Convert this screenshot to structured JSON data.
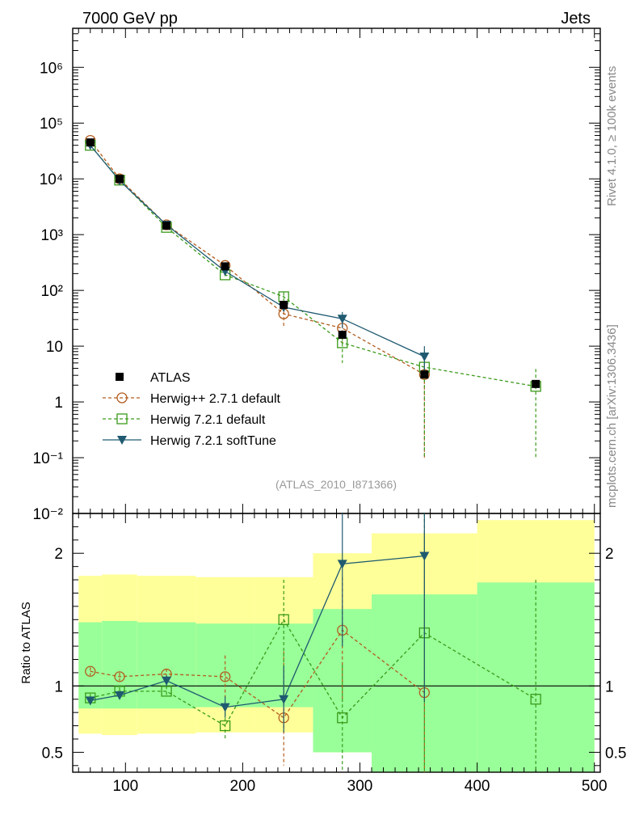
{
  "chart_data": {
    "type": "scatter",
    "title_left": "7000 GeV pp",
    "title_right": "Jets",
    "analysis_tag": "(ATLAS_2010_I871366)",
    "side_text_top": "Rivet 4.1.0, ≥ 100k events",
    "side_text_bottom": "mcplots.cern.ch [arXiv:1306.3436]",
    "ratio_ylabel": "Ratio to ATLAS",
    "xlim": [
      55,
      505
    ],
    "x_ticks": [
      "100",
      "200",
      "300",
      "400",
      "500"
    ],
    "main_ylim_log10": [
      -2,
      6.7
    ],
    "main_y_ticks": [
      "10⁻²",
      "10⁻¹",
      "1",
      "10",
      "10²",
      "10³",
      "10⁴",
      "10⁵",
      "10⁶"
    ],
    "ratio_ylim": [
      0.35,
      2.3
    ],
    "ratio_y_ticks": [
      "0.5",
      "1",
      "2"
    ],
    "data": {
      "name": "ATLAS",
      "x": [
        70,
        95,
        135,
        185,
        235,
        285,
        355,
        450
      ],
      "y": [
        45000,
        10000,
        1450,
        270,
        55,
        16,
        3.1,
        2.1
      ]
    },
    "bands": [
      {
        "x0": 60,
        "x1": 80,
        "yel": [
          0.64,
          1.83
        ],
        "grn": [
          0.83,
          1.48
        ]
      },
      {
        "x0": 80,
        "x1": 110,
        "yel": [
          0.63,
          1.84
        ],
        "grn": [
          0.83,
          1.49
        ]
      },
      {
        "x0": 110,
        "x1": 160,
        "yel": [
          0.64,
          1.83
        ],
        "grn": [
          0.83,
          1.48
        ]
      },
      {
        "x0": 160,
        "x1": 210,
        "yel": [
          0.65,
          1.82
        ],
        "grn": [
          0.84,
          1.47
        ]
      },
      {
        "x0": 210,
        "x1": 260,
        "yel": [
          0.65,
          1.82
        ],
        "grn": [
          0.84,
          1.47
        ]
      },
      {
        "x0": 260,
        "x1": 310,
        "yel": [
          0.5,
          2.0
        ],
        "grn": [
          0.5,
          1.58
        ]
      },
      {
        "x0": 310,
        "x1": 400,
        "yel": [
          0.3,
          2.15
        ],
        "grn": [
          0.3,
          1.69
        ]
      },
      {
        "x0": 400,
        "x1": 500,
        "yel": [
          0.3,
          2.25
        ],
        "grn": [
          0.3,
          1.78
        ]
      }
    ],
    "series": [
      {
        "name": "Herwig++ 2.7.1 default",
        "color": "#b35c1e",
        "marker": "circle",
        "dashed": true,
        "x": [
          70,
          95,
          135,
          185,
          235,
          285,
          355
        ],
        "y": [
          49000,
          10000,
          1500,
          280,
          38,
          21,
          3.1
        ],
        "y_err_lo": [
          1500,
          400,
          60,
          25,
          15,
          10,
          3.0
        ],
        "y_err_hi": [
          1500,
          400,
          60,
          25,
          15,
          10,
          3.0
        ],
        "ratio": [
          1.11,
          1.07,
          1.09,
          1.07,
          0.76,
          1.42,
          0.95
        ],
        "ratio_lo": [
          0.03,
          0.03,
          0.04,
          0.16,
          0.36,
          0.54,
          0.6
        ],
        "ratio_hi": [
          0.03,
          0.03,
          0.04,
          0.16,
          0.5,
          0.4,
          1.2
        ]
      },
      {
        "name": "Herwig 7.2.1 default",
        "color": "#3a9a1a",
        "marker": "square",
        "dashed": true,
        "x": [
          70,
          95,
          135,
          185,
          235,
          285,
          355,
          450
        ],
        "y": [
          40000,
          9500,
          1350,
          190,
          77,
          11.5,
          4.2,
          1.9
        ],
        "y_err_lo": [
          1200,
          350,
          55,
          15,
          15,
          6.5,
          4.1,
          1.8
        ],
        "y_err_hi": [
          1200,
          350,
          55,
          15,
          15,
          6.5,
          4.0,
          2.0
        ],
        "ratio": [
          0.91,
          0.96,
          0.96,
          0.7,
          1.5,
          0.76,
          1.4,
          0.9
        ],
        "ratio_lo": [
          0.03,
          0.03,
          0.04,
          0.1,
          0.6,
          0.4,
          1.1,
          0.6
        ],
        "ratio_hi": [
          0.03,
          0.03,
          0.04,
          0.1,
          0.3,
          0.4,
          1.0,
          0.9
        ]
      },
      {
        "name": "Herwig 7.2.1 softTune",
        "color": "#1f5a70",
        "marker": "triangle",
        "dashed": false,
        "x": [
          70,
          95,
          135,
          185,
          235,
          285,
          355
        ],
        "y": [
          40000,
          9300,
          1500,
          220,
          50,
          31,
          6.5
        ],
        "y_err_lo": [
          1200,
          350,
          55,
          15,
          8,
          10,
          3.5
        ],
        "y_err_hi": [
          1200,
          350,
          55,
          15,
          8,
          10,
          3.5
        ],
        "ratio": [
          0.89,
          0.93,
          1.04,
          0.84,
          0.9,
          1.92,
          1.98
        ],
        "ratio_lo": [
          0.03,
          0.03,
          0.04,
          0.08,
          0.25,
          0.62,
          1.1
        ],
        "ratio_hi": [
          0.03,
          0.03,
          0.04,
          0.08,
          0.25,
          0.5,
          0.5
        ]
      }
    ]
  }
}
